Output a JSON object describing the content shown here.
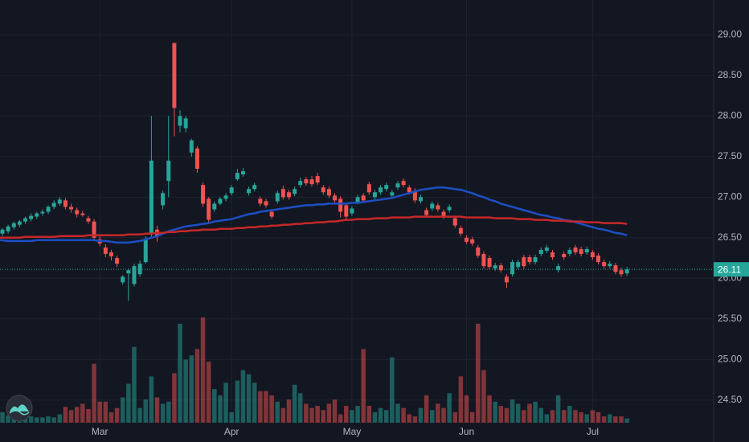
{
  "chart_data": {
    "type": "candlestick",
    "categories": [
      null,
      null,
      null,
      null,
      null,
      null,
      null,
      null,
      null,
      null,
      null,
      null,
      null,
      null,
      null,
      null,
      null,
      "Mar",
      null,
      null,
      null,
      null,
      null,
      null,
      null,
      null,
      null,
      null,
      null,
      null,
      null,
      null,
      null,
      null,
      null,
      null,
      null,
      null,
      null,
      null,
      "Apr",
      null,
      null,
      null,
      null,
      null,
      null,
      null,
      null,
      null,
      null,
      null,
      null,
      null,
      null,
      null,
      null,
      null,
      null,
      null,
      null,
      "May",
      null,
      null,
      null,
      null,
      null,
      null,
      null,
      null,
      null,
      null,
      null,
      null,
      null,
      null,
      null,
      null,
      null,
      null,
      null,
      "Jun",
      null,
      null,
      null,
      null,
      null,
      null,
      null,
      null,
      null,
      null,
      null,
      null,
      null,
      null,
      null,
      null,
      null,
      null,
      null,
      null,
      null,
      "Jul",
      null,
      null,
      null,
      null,
      null,
      null
    ],
    "open": [
      26.55,
      26.58,
      26.63,
      26.66,
      26.7,
      26.73,
      26.76,
      26.8,
      26.82,
      26.88,
      26.92,
      26.96,
      26.88,
      26.84,
      26.8,
      26.74,
      26.7,
      26.48,
      26.38,
      26.32,
      26.25,
      25.95,
      26.06,
      25.93,
      26.05,
      26.2,
      26.55,
      26.6,
      26.9,
      27.2,
      28.9,
      27.88,
      27.85,
      27.55,
      27.6,
      27.15,
      26.98,
      26.85,
      26.92,
      26.98,
      27.05,
      27.22,
      27.28,
      27.05,
      27.1,
      26.98,
      26.95,
      26.82,
      26.95,
      27.1,
      27.06,
      27.04,
      27.15,
      27.22,
      27.22,
      27.26,
      27.12,
      27.1,
      27.02,
      26.98,
      26.9,
      26.8,
      26.94,
      27.02,
      27.16,
      27.0,
      27.06,
      27.1,
      27.02,
      27.12,
      27.2,
      27.12,
      27.08,
      26.95,
      26.84,
      26.86,
      26.9,
      26.82,
      26.84,
      26.74,
      26.62,
      26.5,
      26.48,
      26.38,
      26.3,
      26.25,
      26.12,
      26.16,
      26.02,
      26.05,
      26.14,
      26.26,
      26.26,
      26.2,
      26.3,
      26.34,
      26.32,
      26.1,
      26.3,
      26.3,
      26.38,
      26.36,
      26.32,
      26.32,
      26.28,
      26.2,
      26.15,
      26.16,
      26.1,
      26.06
    ],
    "high": [
      26.62,
      26.66,
      26.7,
      26.72,
      26.76,
      26.8,
      26.82,
      26.85,
      26.9,
      26.96,
      27.0,
      26.99,
      26.92,
      26.87,
      26.83,
      26.77,
      26.73,
      26.52,
      26.42,
      26.35,
      26.28,
      26.04,
      26.12,
      26.18,
      26.22,
      26.52,
      28.0,
      26.65,
      27.08,
      28.0,
      28.9,
      28.07,
      28.0,
      27.72,
      27.63,
      27.18,
      27.0,
      26.95,
      27.0,
      27.05,
      27.15,
      27.35,
      27.36,
      27.13,
      27.18,
      27.01,
      26.98,
      26.85,
      27.08,
      27.14,
      27.09,
      27.13,
      27.24,
      27.25,
      27.26,
      27.3,
      27.15,
      27.13,
      27.05,
      27.01,
      26.93,
      26.89,
      27.03,
      27.05,
      27.19,
      27.09,
      27.15,
      27.18,
      27.09,
      27.2,
      27.23,
      27.15,
      27.11,
      27.03,
      26.87,
      26.95,
      26.93,
      26.85,
      26.91,
      26.77,
      26.65,
      26.53,
      26.51,
      26.41,
      26.33,
      26.28,
      26.19,
      26.19,
      26.05,
      26.23,
      26.23,
      26.29,
      26.29,
      26.29,
      26.38,
      26.41,
      26.35,
      26.18,
      26.33,
      26.38,
      26.41,
      26.39,
      26.39,
      26.35,
      26.31,
      26.23,
      26.21,
      26.19,
      26.13,
      26.14
    ],
    "low": [
      26.52,
      26.55,
      26.6,
      26.63,
      26.67,
      26.7,
      26.73,
      26.77,
      26.79,
      26.85,
      26.89,
      26.85,
      26.81,
      26.75,
      26.76,
      26.67,
      26.46,
      26.4,
      26.26,
      26.22,
      26.14,
      25.92,
      25.72,
      25.9,
      26.02,
      26.18,
      26.5,
      26.45,
      26.85,
      27.0,
      27.75,
      27.8,
      27.8,
      27.5,
      27.3,
      26.88,
      26.68,
      26.82,
      26.9,
      26.95,
      27.02,
      27.2,
      27.25,
      27.02,
      27.07,
      26.89,
      26.87,
      26.73,
      26.92,
      26.97,
      26.97,
      27.01,
      27.12,
      27.14,
      27.13,
      27.15,
      27.03,
      26.99,
      26.93,
      26.75,
      26.73,
      26.77,
      26.91,
      26.93,
      27.03,
      26.97,
      27.03,
      27.07,
      26.99,
      27.09,
      27.12,
      27.03,
      26.93,
      26.92,
      26.75,
      26.83,
      26.82,
      26.73,
      26.81,
      26.62,
      26.52,
      26.42,
      26.4,
      26.25,
      26.12,
      26.11,
      26.09,
      26.07,
      25.88,
      26.02,
      26.11,
      26.12,
      26.17,
      26.17,
      26.27,
      26.31,
      26.23,
      26.07,
      26.23,
      26.27,
      26.29,
      26.27,
      26.29,
      26.23,
      26.17,
      26.12,
      26.12,
      26.05,
      26.02,
      26.03
    ],
    "close": [
      26.6,
      26.64,
      26.68,
      26.7,
      26.74,
      26.77,
      26.8,
      26.82,
      26.88,
      26.93,
      26.97,
      26.88,
      26.85,
      26.79,
      26.78,
      26.7,
      26.5,
      26.43,
      26.3,
      26.27,
      26.18,
      26.02,
      26.1,
      26.15,
      26.18,
      26.48,
      27.45,
      26.52,
      27.05,
      27.45,
      28.1,
      28.0,
      27.97,
      27.7,
      27.35,
      26.92,
      26.72,
      26.92,
      26.98,
      27.02,
      27.12,
      27.3,
      27.32,
      27.1,
      27.15,
      26.92,
      26.9,
      26.76,
      27.05,
      27.0,
      27.0,
      27.1,
      27.2,
      27.17,
      27.16,
      27.18,
      27.06,
      27.02,
      26.96,
      26.82,
      26.76,
      26.86,
      27.0,
      26.96,
      27.06,
      27.06,
      27.12,
      27.15,
      27.06,
      27.17,
      27.15,
      27.06,
      26.96,
      27.0,
      26.78,
      26.92,
      26.85,
      26.76,
      26.88,
      26.65,
      26.55,
      26.45,
      26.43,
      26.28,
      26.15,
      26.14,
      26.16,
      26.1,
      25.95,
      26.2,
      26.2,
      26.15,
      26.2,
      26.26,
      26.35,
      26.38,
      26.26,
      26.15,
      26.26,
      26.35,
      26.32,
      26.3,
      26.36,
      26.26,
      26.2,
      26.15,
      26.18,
      26.08,
      26.05,
      26.11
    ],
    "volume": [
      10,
      7,
      11,
      8,
      6,
      6,
      5,
      5,
      6,
      5,
      8,
      15,
      12,
      15,
      18,
      13,
      56,
      20,
      20,
      10,
      14,
      24,
      37,
      72,
      14,
      22,
      44,
      24,
      18,
      20,
      47,
      94,
      60,
      64,
      70,
      100,
      58,
      32,
      26,
      38,
      10,
      40,
      50,
      46,
      38,
      30,
      30,
      26,
      20,
      14,
      22,
      36,
      28,
      18,
      14,
      16,
      12,
      18,
      22,
      8,
      16,
      12,
      16,
      70,
      16,
      10,
      14,
      12,
      62,
      18,
      14,
      8,
      6,
      14,
      26,
      12,
      18,
      14,
      28,
      10,
      44,
      26,
      10,
      94,
      50,
      26,
      20,
      16,
      14,
      22,
      18,
      12,
      18,
      20,
      14,
      8,
      12,
      26,
      12,
      16,
      12,
      10,
      8,
      12,
      10,
      6,
      8,
      6,
      6,
      4
    ],
    "up_color": "#26a69a",
    "down_color": "#ef5350",
    "volume_up_color": "rgba(38,166,154,0.5)",
    "volume_down_color": "rgba(239,83,80,0.5)",
    "moving_averages": [
      {
        "color": "#1c4fc4",
        "values": [
          26.47,
          26.46,
          26.46,
          26.46,
          26.46,
          26.46,
          26.47,
          26.47,
          26.47,
          26.47,
          26.47,
          26.47,
          26.47,
          26.47,
          26.47,
          26.47,
          26.47,
          26.46,
          26.46,
          26.45,
          26.44,
          26.44,
          26.44,
          26.45,
          26.46,
          26.48,
          26.5,
          26.52,
          26.55,
          26.58,
          26.6,
          26.62,
          26.64,
          26.65,
          26.66,
          26.67,
          26.68,
          26.7,
          26.71,
          26.72,
          26.73,
          26.75,
          26.77,
          26.79,
          26.8,
          26.82,
          26.83,
          26.84,
          26.85,
          26.86,
          26.87,
          26.88,
          26.89,
          26.9,
          26.9,
          26.91,
          26.91,
          26.92,
          26.92,
          26.92,
          26.92,
          26.93,
          26.93,
          26.94,
          26.95,
          26.96,
          26.97,
          26.98,
          26.99,
          27.01,
          27.03,
          27.05,
          27.07,
          27.09,
          27.1,
          27.11,
          27.12,
          27.12,
          27.11,
          27.1,
          27.09,
          27.07,
          27.05,
          27.02,
          27.0,
          26.97,
          26.95,
          26.92,
          26.9,
          26.88,
          26.86,
          26.84,
          26.82,
          26.8,
          26.78,
          26.77,
          26.75,
          26.74,
          26.72,
          26.71,
          26.69,
          26.67,
          26.65,
          26.63,
          26.61,
          26.6,
          26.58,
          26.56,
          26.55,
          26.53
        ]
      },
      {
        "color": "#c62828",
        "values": [
          26.5,
          26.5,
          26.5,
          26.5,
          26.51,
          26.51,
          26.51,
          26.51,
          26.51,
          26.51,
          26.52,
          26.52,
          26.52,
          26.52,
          26.52,
          26.53,
          26.53,
          26.53,
          26.53,
          26.53,
          26.53,
          26.53,
          26.54,
          26.54,
          26.54,
          26.55,
          26.55,
          26.56,
          26.56,
          26.57,
          26.57,
          26.58,
          26.58,
          26.59,
          26.59,
          26.6,
          26.6,
          26.6,
          26.61,
          26.61,
          26.61,
          26.62,
          26.62,
          26.63,
          26.63,
          26.64,
          26.64,
          26.65,
          26.65,
          26.66,
          26.66,
          26.67,
          26.67,
          26.68,
          26.68,
          26.69,
          26.69,
          26.7,
          26.7,
          26.71,
          26.72,
          26.72,
          26.73,
          26.73,
          26.73,
          26.74,
          26.74,
          26.74,
          26.75,
          26.75,
          26.75,
          26.75,
          26.76,
          26.76,
          26.76,
          26.76,
          26.76,
          26.76,
          26.76,
          26.76,
          26.76,
          26.75,
          26.75,
          26.75,
          26.75,
          26.75,
          26.74,
          26.74,
          26.74,
          26.74,
          26.73,
          26.73,
          26.73,
          26.72,
          26.72,
          26.72,
          26.71,
          26.71,
          26.71,
          26.7,
          26.7,
          26.7,
          26.69,
          26.69,
          26.69,
          26.68,
          26.68,
          26.68,
          26.68,
          26.67
        ]
      }
    ],
    "ylim": [
      24.22,
      29.43
    ],
    "yticks": [
      {
        "value": 24.5,
        "label": "24.50"
      },
      {
        "value": 25,
        "label": "25.00"
      },
      {
        "value": 25.5,
        "label": "25.50"
      },
      {
        "value": 26,
        "label": "26.00"
      },
      {
        "value": 26.5,
        "label": "26.50"
      },
      {
        "value": 27,
        "label": "27.00"
      },
      {
        "value": 27.5,
        "label": "27.50"
      },
      {
        "value": 28,
        "label": "28.00"
      },
      {
        "value": 28.5,
        "label": "28.50"
      },
      {
        "value": 29,
        "label": "29.00"
      }
    ],
    "grid": true,
    "last_price": 26.11,
    "last_price_color": "#26a69a"
  }
}
